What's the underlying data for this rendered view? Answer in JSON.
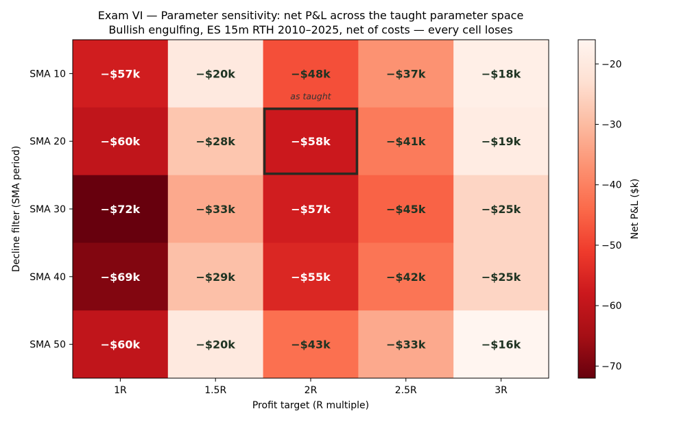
{
  "chart_data": {
    "type": "heatmap",
    "title": "Exam VI — Parameter sensitivity: net P&L across the taught parameter space",
    "subtitle": "Bullish engulfing, ES 15m RTH 2010–2025, net of costs — every cell loses",
    "xlabel": "Profit target (R multiple)",
    "ylabel": "Decline filter (SMA period)",
    "x_categories": [
      "1R",
      "1.5R",
      "2R",
      "2.5R",
      "3R"
    ],
    "y_categories": [
      "SMA 10",
      "SMA 20",
      "SMA 30",
      "SMA 40",
      "SMA 50"
    ],
    "values": [
      [
        -57,
        -20,
        -48,
        -37,
        -18
      ],
      [
        -60,
        -28,
        -58,
        -41,
        -19
      ],
      [
        -72,
        -33,
        -57,
        -45,
        -25
      ],
      [
        -69,
        -29,
        -55,
        -42,
        -25
      ],
      [
        -60,
        -20,
        -43,
        -33,
        -16
      ]
    ],
    "cell_labels": [
      [
        "−$57k",
        "−$20k",
        "−$48k",
        "−$37k",
        "−$18k"
      ],
      [
        "−$60k",
        "−$28k",
        "−$58k",
        "−$41k",
        "−$19k"
      ],
      [
        "−$72k",
        "−$33k",
        "−$57k",
        "−$45k",
        "−$25k"
      ],
      [
        "−$69k",
        "−$29k",
        "−$55k",
        "−$42k",
        "−$25k"
      ],
      [
        "−$60k",
        "−$20k",
        "−$43k",
        "−$33k",
        "−$16k"
      ]
    ],
    "highlight": {
      "row": 1,
      "col": 2,
      "annotation": "as taught"
    },
    "colorbar": {
      "label": "Net P&L ($k)",
      "range": [
        -72,
        -16
      ],
      "ticks": [
        -20,
        -30,
        -40,
        -50,
        -60,
        -70
      ],
      "tick_labels": [
        "−20",
        "−30",
        "−40",
        "−50",
        "−60",
        "−70"
      ],
      "colormap": "Reds_r"
    },
    "colors": {
      "light_text": "#ffffff",
      "dark_text": "#1e3322",
      "highlight_border": "#2a2a22"
    }
  }
}
